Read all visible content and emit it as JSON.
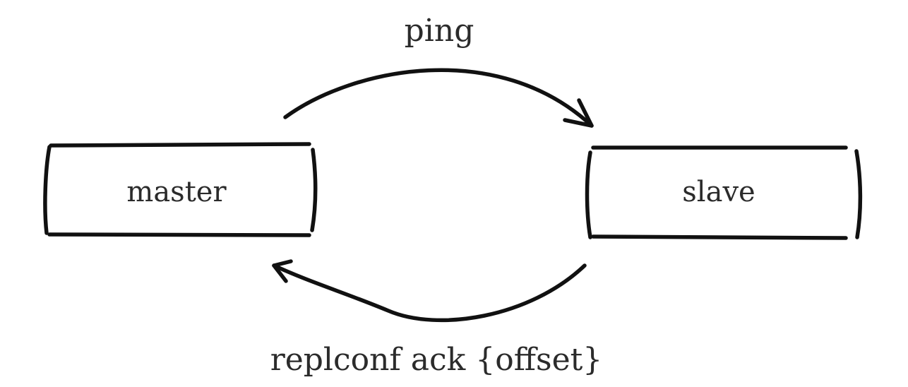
{
  "nodes": {
    "master": "master",
    "slave": "slave"
  },
  "edges": {
    "ping": "ping",
    "ack": "replconf ack {offset}"
  },
  "colors": {
    "stroke": "#111111",
    "text": "#2b2b2b",
    "background": "#ffffff"
  }
}
